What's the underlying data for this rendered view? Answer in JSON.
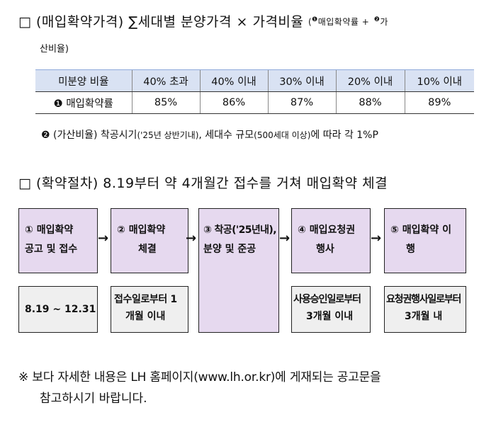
{
  "heading1": {
    "bullet": "□",
    "label": "(매입확약가격)",
    "formula": "∑세대별 분양가격 × 가격비율",
    "paren_open": "(",
    "marker1": "❶",
    "term1": "매입확약률 +",
    "marker2": "❷",
    "term2": "가",
    "continuation": "산비율)"
  },
  "rate_table": {
    "headers": [
      "미분양 비율",
      "40% 초과",
      "40% 이내",
      "30% 이내",
      "20% 이내",
      "10% 이내"
    ],
    "row_label": "❶ 매입확약률",
    "values": [
      "85%",
      "86%",
      "87%",
      "88%",
      "89%"
    ]
  },
  "note2": {
    "marker": "❷",
    "label": "(가산비율) 착공시기",
    "detail1": "('25년 상반기내)",
    "mid": ", 세대수 규모",
    "detail2": "(500세대 이상)",
    "tail": "에 따라 각 1%P"
  },
  "heading2": {
    "bullet": "□",
    "label": "(확약절차)",
    "text": "8.19부터 약 4개월간 접수를 거쳐 매입확약 체결"
  },
  "steps": [
    {
      "line1": "① 매입확약",
      "line2": "공고 및 접수"
    },
    {
      "line1": "② 매입확약",
      "line2": "체결"
    },
    {
      "line1": "③ 착공('25년내),",
      "line2": "분양 및 준공"
    },
    {
      "line1": "④ 매입요청권",
      "line2": "행사"
    },
    {
      "line1": "⑤ 매입확약 이",
      "line2": "행"
    }
  ],
  "arrow_glyph": "→",
  "timings": [
    {
      "line1": "8.19 ~ 12.31",
      "line2": ""
    },
    {
      "line1": "접수일로부터 1",
      "line2": "개월 이내"
    },
    {
      "line1": "사용승인일로부터",
      "line2": "3개월 이내"
    },
    {
      "line1": "요청권행사일로부터",
      "line2": "3개월 내"
    }
  ],
  "footnote": {
    "line1": "※ 보다 자세한 내용은 LH 홈페이지(www.lh.or.kr)에 게재되는 공고문을",
    "line2": "참고하시기 바랍니다."
  }
}
